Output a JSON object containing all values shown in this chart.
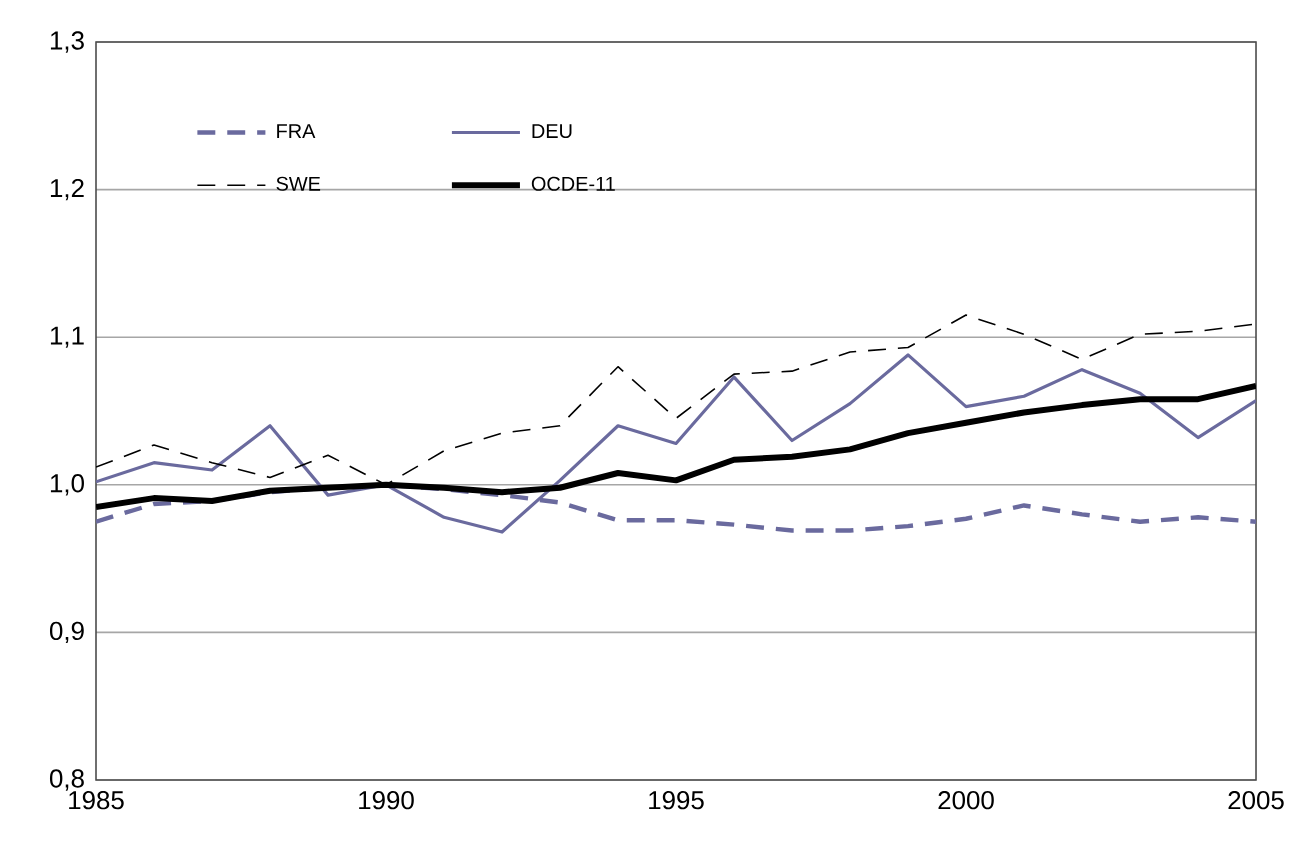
{
  "chart_data": {
    "type": "line",
    "x": [
      1985,
      1986,
      1987,
      1988,
      1989,
      1990,
      1991,
      1992,
      1993,
      1994,
      1995,
      1996,
      1997,
      1998,
      1999,
      2000,
      2001,
      2002,
      2003,
      2004,
      2005
    ],
    "series": [
      {
        "name": "FRA",
        "color": "#6a6a9e",
        "line_style": "dashed",
        "values": [
          0.975,
          0.987,
          0.989,
          0.995,
          0.998,
          1.0,
          0.997,
          0.993,
          0.988,
          0.976,
          0.976,
          0.973,
          0.969,
          0.969,
          0.972,
          0.977,
          0.986,
          0.98,
          0.975,
          0.978,
          0.975
        ]
      },
      {
        "name": "DEU",
        "color": "#6a6a9e",
        "line_style": "solid",
        "values": [
          1.002,
          1.015,
          1.01,
          1.04,
          0.993,
          1.0,
          0.978,
          0.968,
          1.003,
          1.04,
          1.028,
          1.073,
          1.03,
          1.055,
          1.088,
          1.053,
          1.06,
          1.078,
          1.062,
          1.032,
          1.057
        ]
      },
      {
        "name": "SWE",
        "color": "#000000",
        "line_style": "dashed",
        "values": [
          1.012,
          1.027,
          1.015,
          1.005,
          1.02,
          1.0,
          1.023,
          1.035,
          1.04,
          1.08,
          1.045,
          1.075,
          1.077,
          1.09,
          1.093,
          1.115,
          1.102,
          1.085,
          1.102,
          1.104,
          1.109
        ]
      },
      {
        "name": "OCDE-11",
        "color": "#000000",
        "line_style": "solid",
        "values": [
          0.985,
          0.991,
          0.989,
          0.996,
          0.998,
          1.0,
          0.998,
          0.995,
          0.998,
          1.008,
          1.003,
          1.017,
          1.019,
          1.024,
          1.035,
          1.042,
          1.049,
          1.054,
          1.058,
          1.058,
          1.067
        ]
      }
    ],
    "xlim": [
      1985,
      2005
    ],
    "xticks": [
      1985,
      1990,
      1995,
      2000,
      2005
    ],
    "ylim": [
      0.8,
      1.3
    ],
    "yticks": [
      {
        "value": 0.8,
        "label": "0,8"
      },
      {
        "value": 0.9,
        "label": "0,9"
      },
      {
        "value": 1.0,
        "label": "1,0"
      },
      {
        "value": 1.1,
        "label": "1,1"
      },
      {
        "value": 1.2,
        "label": "1,2"
      },
      {
        "value": 1.3,
        "label": "1,3"
      }
    ],
    "grid": "y",
    "legend": "top",
    "marker": "none"
  }
}
